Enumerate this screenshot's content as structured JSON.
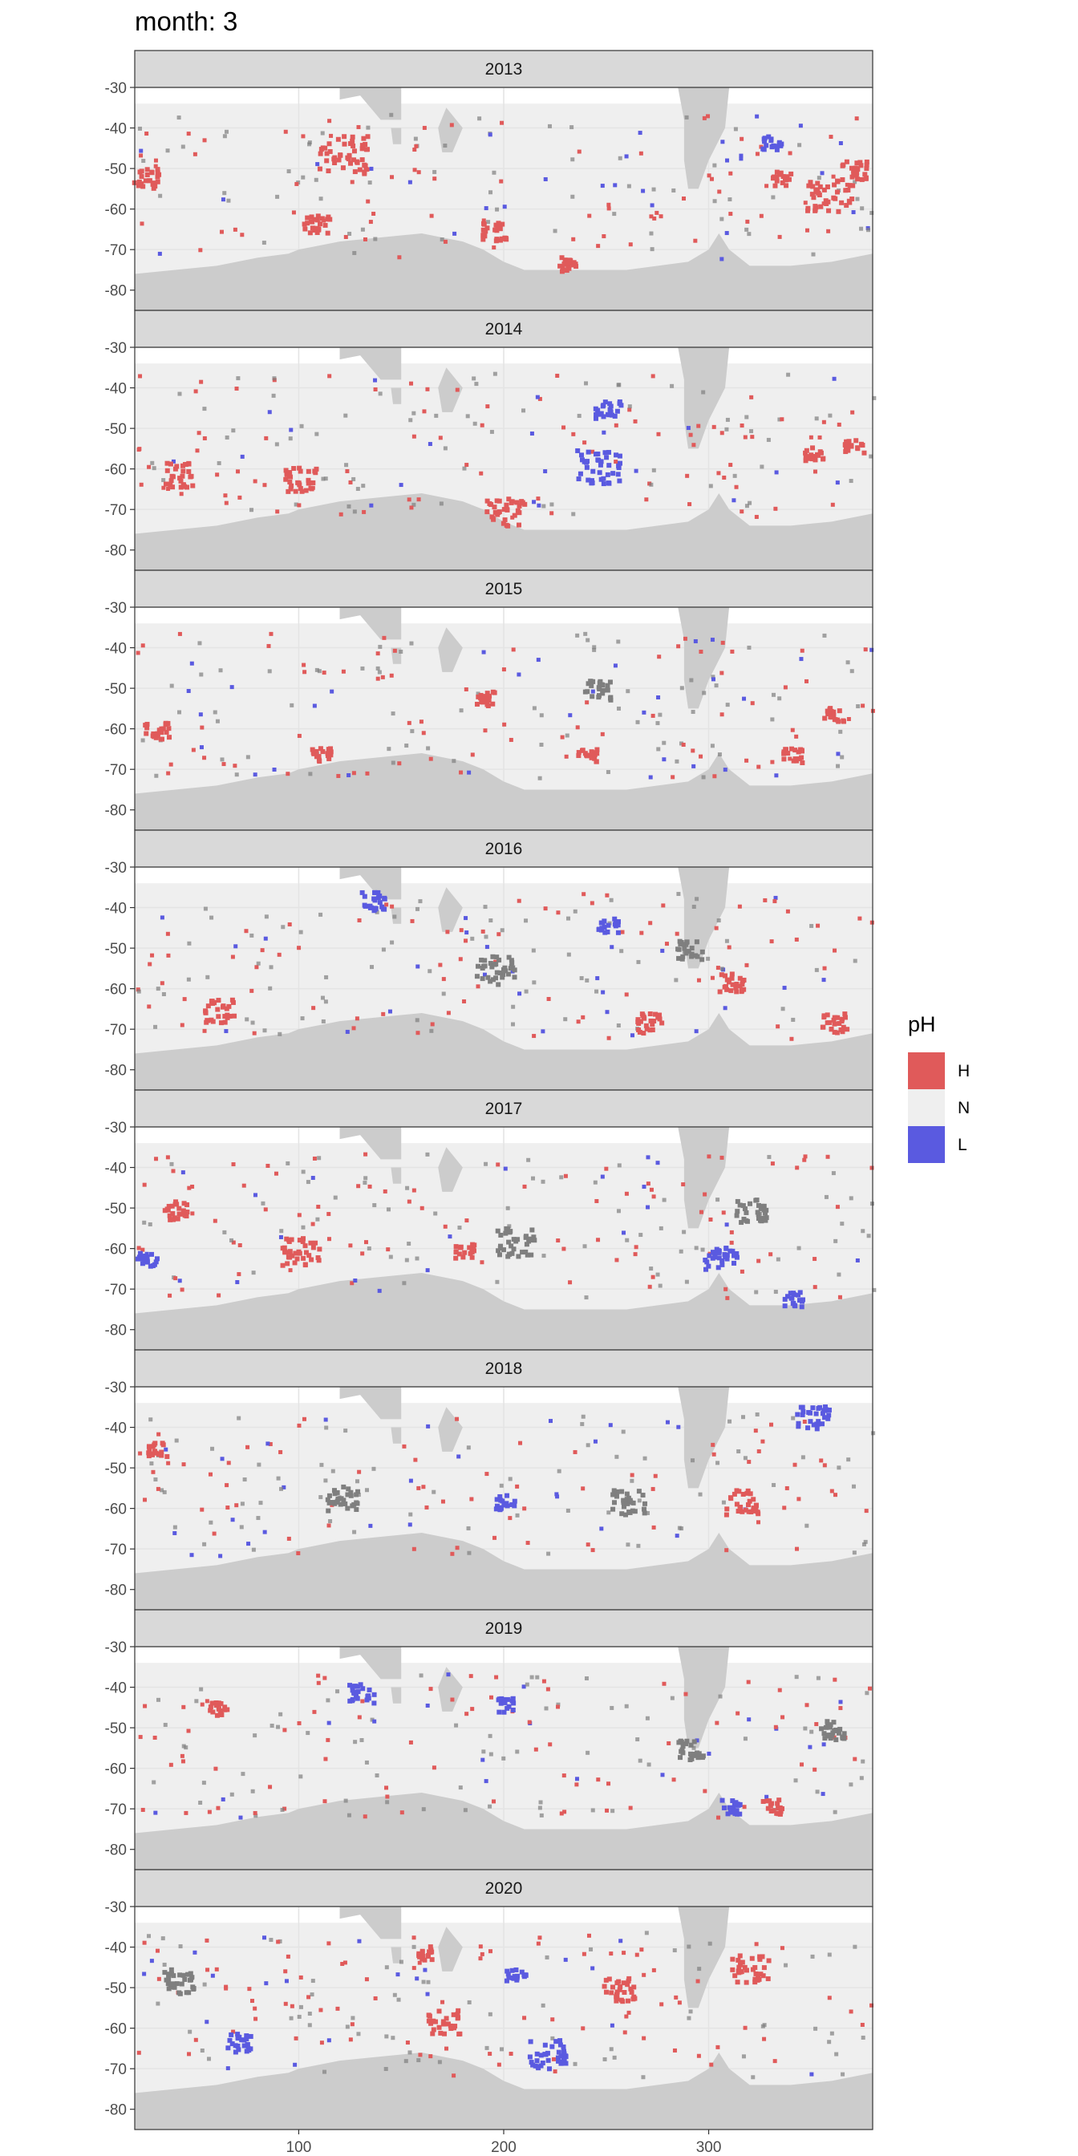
{
  "title": "month: 3",
  "colors": {
    "H": "#e05a5a",
    "N": "#efefef",
    "L": "#5a5ae0",
    "land": "#cccccc",
    "mixed": "#7f7f7f",
    "strip_bg": "#d9d9d9",
    "grid": "#e4e4e4"
  },
  "chart_data": {
    "type": "heatmap",
    "facet_prefix": "",
    "facets": [
      "2013",
      "2014",
      "2015",
      "2016",
      "2017",
      "2018",
      "2019",
      "2020"
    ],
    "xlim": [
      20,
      380
    ],
    "ylim": [
      -85,
      -30
    ],
    "x_ticks": [
      100,
      200,
      300
    ],
    "x_tick_labels": [
      "100",
      "200",
      "300"
    ],
    "y_ticks": [
      -30,
      -40,
      -50,
      -60,
      -70,
      -80
    ],
    "y_tick_labels": [
      "-30",
      "-40",
      "-50",
      "-60",
      "-70",
      "-80"
    ],
    "grid": true,
    "legend": {
      "title": "pH",
      "position": "right",
      "entries": [
        {
          "key": "H",
          "label": "H"
        },
        {
          "key": "N",
          "label": "N"
        },
        {
          "key": "L",
          "label": "L"
        }
      ]
    },
    "clusters": {
      "2013": [
        {
          "lon": 25,
          "lat": -52,
          "r": 4,
          "v": "H"
        },
        {
          "lon": 120,
          "lat": -46,
          "r": 8,
          "v": "H"
        },
        {
          "lon": 108,
          "lat": -63,
          "r": 4,
          "v": "H"
        },
        {
          "lon": 195,
          "lat": -65,
          "r": 4,
          "v": "H"
        },
        {
          "lon": 330,
          "lat": -43,
          "r": 3,
          "v": "L"
        },
        {
          "lon": 358,
          "lat": -56,
          "r": 7,
          "v": "H"
        },
        {
          "lon": 370,
          "lat": -50,
          "r": 4,
          "v": "H"
        },
        {
          "lon": 335,
          "lat": -52,
          "r": 3,
          "v": "H"
        },
        {
          "lon": 230,
          "lat": -73,
          "r": 3,
          "v": "H"
        }
      ],
      "2014": [
        {
          "lon": 40,
          "lat": -61,
          "r": 5,
          "v": "H"
        },
        {
          "lon": 100,
          "lat": -62,
          "r": 5,
          "v": "H"
        },
        {
          "lon": 245,
          "lat": -59,
          "r": 7,
          "v": "L"
        },
        {
          "lon": 250,
          "lat": -45,
          "r": 4,
          "v": "L"
        },
        {
          "lon": 200,
          "lat": -70,
          "r": 6,
          "v": "H"
        },
        {
          "lon": 350,
          "lat": -56,
          "r": 3,
          "v": "H"
        },
        {
          "lon": 370,
          "lat": -54,
          "r": 3,
          "v": "H"
        }
      ],
      "2015": [
        {
          "lon": 30,
          "lat": -60,
          "r": 4,
          "v": "H"
        },
        {
          "lon": 110,
          "lat": -66,
          "r": 3,
          "v": "H"
        },
        {
          "lon": 190,
          "lat": -52,
          "r": 3,
          "v": "H"
        },
        {
          "lon": 240,
          "lat": -66,
          "r": 3,
          "v": "H"
        },
        {
          "lon": 360,
          "lat": -56,
          "r": 3,
          "v": "H"
        },
        {
          "lon": 340,
          "lat": -66,
          "r": 3,
          "v": "H"
        },
        {
          "lon": 245,
          "lat": -50,
          "r": 4,
          "v": "M"
        }
      ],
      "2016": [
        {
          "lon": 60,
          "lat": -65,
          "r": 5,
          "v": "H"
        },
        {
          "lon": 135,
          "lat": -38,
          "r": 4,
          "v": "L"
        },
        {
          "lon": 250,
          "lat": -44,
          "r": 3,
          "v": "L"
        },
        {
          "lon": 270,
          "lat": -68,
          "r": 4,
          "v": "H"
        },
        {
          "lon": 310,
          "lat": -58,
          "r": 4,
          "v": "H"
        },
        {
          "lon": 360,
          "lat": -68,
          "r": 4,
          "v": "H"
        },
        {
          "lon": 195,
          "lat": -55,
          "r": 6,
          "v": "M"
        },
        {
          "lon": 290,
          "lat": -50,
          "r": 4,
          "v": "M"
        }
      ],
      "2017": [
        {
          "lon": 25,
          "lat": -62,
          "r": 3,
          "v": "L"
        },
        {
          "lon": 40,
          "lat": -50,
          "r": 4,
          "v": "H"
        },
        {
          "lon": 100,
          "lat": -60,
          "r": 6,
          "v": "H"
        },
        {
          "lon": 205,
          "lat": -58,
          "r": 6,
          "v": "M"
        },
        {
          "lon": 305,
          "lat": -62,
          "r": 5,
          "v": "L"
        },
        {
          "lon": 340,
          "lat": -72,
          "r": 3,
          "v": "L"
        },
        {
          "lon": 320,
          "lat": -50,
          "r": 5,
          "v": "M"
        },
        {
          "lon": 180,
          "lat": -60,
          "r": 3,
          "v": "H"
        }
      ],
      "2018": [
        {
          "lon": 350,
          "lat": -37,
          "r": 5,
          "v": "L"
        },
        {
          "lon": 200,
          "lat": -58,
          "r": 3,
          "v": "L"
        },
        {
          "lon": 315,
          "lat": -58,
          "r": 5,
          "v": "H"
        },
        {
          "lon": 120,
          "lat": -57,
          "r": 5,
          "v": "M"
        },
        {
          "lon": 260,
          "lat": -58,
          "r": 5,
          "v": "M"
        },
        {
          "lon": 30,
          "lat": -45,
          "r": 3,
          "v": "H"
        }
      ],
      "2019": [
        {
          "lon": 130,
          "lat": -41,
          "r": 4,
          "v": "L"
        },
        {
          "lon": 200,
          "lat": -44,
          "r": 3,
          "v": "L"
        },
        {
          "lon": 310,
          "lat": -69,
          "r": 3,
          "v": "L"
        },
        {
          "lon": 60,
          "lat": -45,
          "r": 3,
          "v": "H"
        },
        {
          "lon": 290,
          "lat": -55,
          "r": 4,
          "v": "M"
        },
        {
          "lon": 360,
          "lat": -50,
          "r": 4,
          "v": "M"
        },
        {
          "lon": 330,
          "lat": -69,
          "r": 3,
          "v": "H"
        }
      ],
      "2020": [
        {
          "lon": 160,
          "lat": -41,
          "r": 3,
          "v": "H"
        },
        {
          "lon": 255,
          "lat": -50,
          "r": 5,
          "v": "H"
        },
        {
          "lon": 170,
          "lat": -58,
          "r": 5,
          "v": "H"
        },
        {
          "lon": 220,
          "lat": -66,
          "r": 6,
          "v": "L"
        },
        {
          "lon": 205,
          "lat": -46,
          "r": 3,
          "v": "L"
        },
        {
          "lon": 320,
          "lat": -45,
          "r": 6,
          "v": "H"
        },
        {
          "lon": 40,
          "lat": -48,
          "r": 5,
          "v": "M"
        },
        {
          "lon": 70,
          "lat": -63,
          "r": 4,
          "v": "L"
        }
      ]
    }
  }
}
